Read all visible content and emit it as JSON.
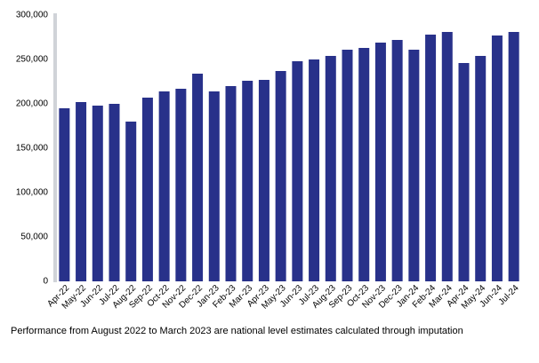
{
  "chart_data": {
    "type": "bar",
    "categories": [
      "Apr-22",
      "May-22",
      "Jun-22",
      "Jul-22",
      "Aug-22",
      "Sep-22",
      "Oct-22",
      "Nov-22",
      "Dec-22",
      "Jan-23",
      "Feb-23",
      "Mar-23",
      "Apr-23",
      "May-23",
      "Jun-23",
      "Jul-23",
      "Aug-23",
      "Sep-23",
      "Oct-23",
      "Nov-23",
      "Dec-23",
      "Jan-24",
      "Feb-24",
      "Mar-24",
      "Apr-24",
      "May-24",
      "Jun-24",
      "Jul-24"
    ],
    "values": [
      195000,
      202000,
      198000,
      200000,
      180000,
      207000,
      214000,
      217000,
      234000,
      214000,
      220000,
      226000,
      227000,
      237000,
      248000,
      250000,
      254000,
      261000,
      263000,
      269000,
      272000,
      261000,
      278000,
      281000,
      246000,
      254000,
      277000,
      281000
    ],
    "color": "#28318a",
    "ylim": [
      0,
      300000
    ],
    "yticks": [
      0,
      {
        "value": 50000,
        "label": "50,000"
      },
      {
        "value": 100000,
        "label": "100,000"
      },
      {
        "value": 150000,
        "label": "150,000"
      },
      {
        "value": 200000,
        "label": "200,000"
      },
      {
        "value": 250000,
        "label": "250,000"
      },
      {
        "value": 300000,
        "label": "300,000"
      }
    ],
    "grid": false,
    "annotation": "Performance from August 2022 to March 2023 are national level estimates calculated through imputation"
  }
}
